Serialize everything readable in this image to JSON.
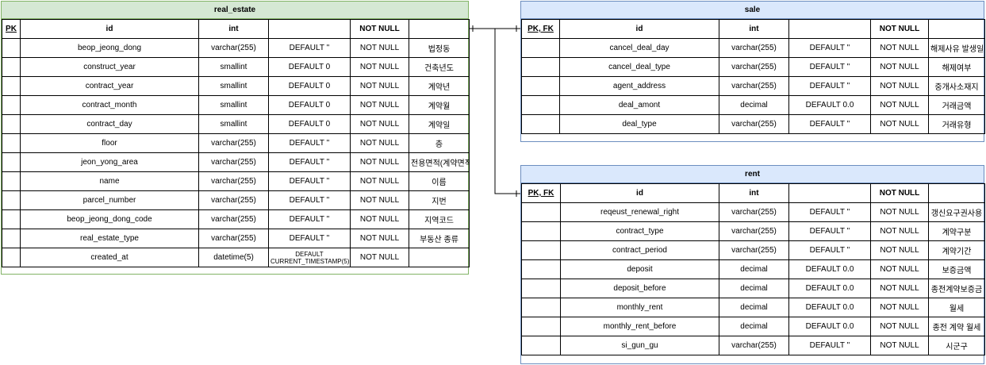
{
  "entities": {
    "real_estate": {
      "title": "real_estate",
      "header": [
        "PK",
        "id",
        "int",
        "",
        "NOT NULL",
        ""
      ],
      "rows": [
        [
          "",
          "beop_jeong_dong",
          "varchar(255)",
          "DEFAULT ''",
          "NOT NULL",
          "법정동"
        ],
        [
          "",
          "construct_year",
          "smallint",
          "DEFAULT 0",
          "NOT NULL",
          "건축년도"
        ],
        [
          "",
          "contract_year",
          "smallint",
          "DEFAULT 0",
          "NOT NULL",
          "계약년"
        ],
        [
          "",
          "contract_month",
          "smallint",
          "DEFAULT 0",
          "NOT NULL",
          "계약월"
        ],
        [
          "",
          "contract_day",
          "smallint",
          "DEFAULT 0",
          "NOT NULL",
          "계약일"
        ],
        [
          "",
          "floor",
          "varchar(255)",
          "DEFAULT ''",
          "NOT NULL",
          "층"
        ],
        [
          "",
          "jeon_yong_area",
          "varchar(255)",
          "DEFAULT ''",
          "NOT NULL",
          "전용면적(계약면적)"
        ],
        [
          "",
          "name",
          "varchar(255)",
          "DEFAULT ''",
          "NOT NULL",
          "이름"
        ],
        [
          "",
          "parcel_number",
          "varchar(255)",
          "DEFAULT ''",
          "NOT NULL",
          "지번"
        ],
        [
          "",
          "beop_jeong_dong_code",
          "varchar(255)",
          "DEFAULT ''",
          "NOT NULL",
          "지역코드"
        ],
        [
          "",
          "real_estate_type",
          "varchar(255)",
          "DEFAULT ''",
          "NOT NULL",
          "부동산 종류"
        ],
        [
          "",
          "created_at",
          "datetime(5)",
          "DEFAULT CURRENT_TIMESTAMP(5)",
          "NOT NULL",
          ""
        ]
      ]
    },
    "sale": {
      "title": "sale",
      "header": [
        "PK, FK",
        "id",
        "int",
        "",
        "NOT NULL",
        ""
      ],
      "rows": [
        [
          "",
          "cancel_deal_day",
          "varchar(255)",
          "DEFAULT ''",
          "NOT NULL",
          "해제사유 발생일"
        ],
        [
          "",
          "cancel_deal_type",
          "varchar(255)",
          "DEFAULT ''",
          "NOT NULL",
          "해제여부"
        ],
        [
          "",
          "agent_address",
          "varchar(255)",
          "DEFAULT ''",
          "NOT NULL",
          "중개사소재지"
        ],
        [
          "",
          "deal_amont",
          "decimal",
          "DEFAULT 0.0",
          "NOT NULL",
          "거래금액"
        ],
        [
          "",
          "deal_type",
          "varchar(255)",
          "DEFAULT ''",
          "NOT NULL",
          "거래유형"
        ]
      ]
    },
    "rent": {
      "title": "rent",
      "header": [
        "PK, FK",
        "id",
        "int",
        "",
        "NOT NULL",
        ""
      ],
      "rows": [
        [
          "",
          "reqeust_renewal_right",
          "varchar(255)",
          "DEFAULT ''",
          "NOT NULL",
          "갱신요구권사용"
        ],
        [
          "",
          "contract_type",
          "varchar(255)",
          "DEFAULT ''",
          "NOT NULL",
          "계약구분"
        ],
        [
          "",
          "contract_period",
          "varchar(255)",
          "DEFAULT ''",
          "NOT NULL",
          "계약기간"
        ],
        [
          "",
          "deposit",
          "decimal",
          "DEFAULT 0.0",
          "NOT NULL",
          "보증금액"
        ],
        [
          "",
          "deposit_before",
          "decimal",
          "DEFAULT 0.0",
          "NOT NULL",
          "종전계약보증금"
        ],
        [
          "",
          "monthly_rent",
          "decimal",
          "DEFAULT 0.0",
          "NOT NULL",
          "월세"
        ],
        [
          "",
          "monthly_rent_before",
          "decimal",
          "DEFAULT 0.0",
          "NOT NULL",
          "종전 계약 월세"
        ],
        [
          "",
          "si_gun_gu",
          "varchar(255)",
          "DEFAULT ''",
          "NOT NULL",
          "시군구"
        ]
      ]
    }
  },
  "colors": {
    "green_fill": "#d5e8d4",
    "green_stroke": "#82b366",
    "blue_fill": "#dae8fc",
    "blue_stroke": "#6c8ebf"
  }
}
